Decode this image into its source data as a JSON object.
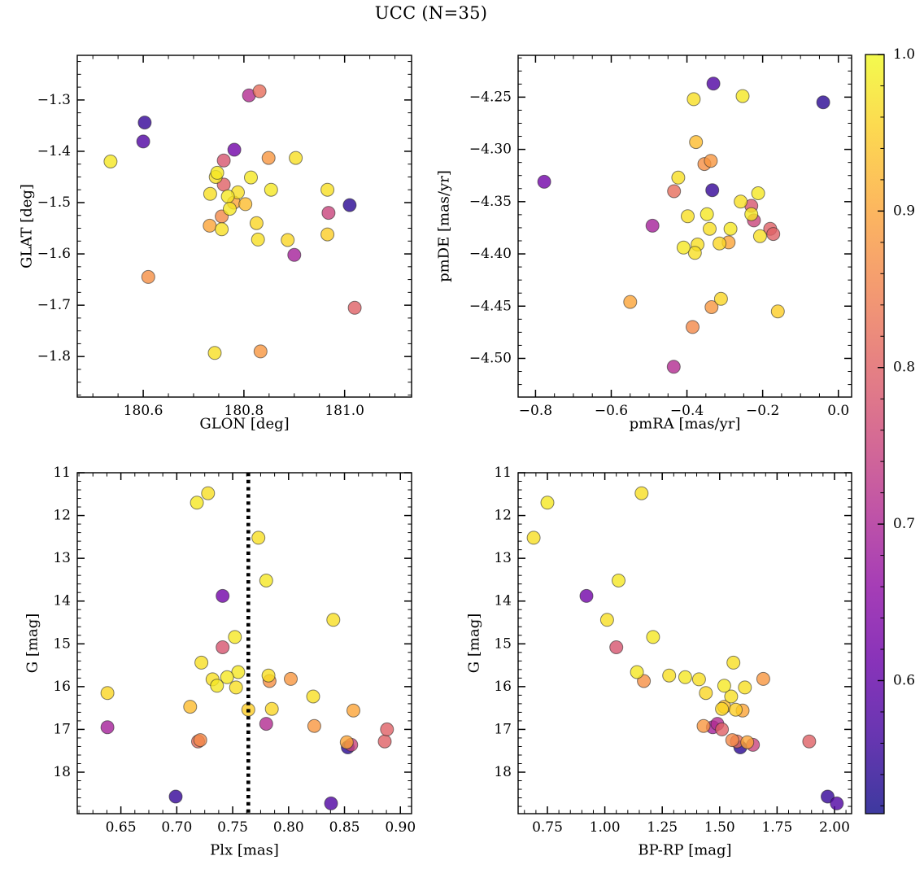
{
  "chart_data": {
    "type": "scatter",
    "title": "UCC (N=35)",
    "n_members": 35,
    "colormap": "plasma",
    "marker_alpha": 0.8,
    "marker_radius": 8,
    "colorbar": {
      "vmin": 0.515,
      "vmax": 1.0,
      "tick_values": [
        1.0,
        0.9,
        0.8,
        0.7,
        0.6
      ],
      "tick_labels": [
        "1.0",
        "0.9",
        "0.8",
        "0.7",
        "0.6"
      ],
      "minor_step": 0.02,
      "position": "right"
    },
    "panels": [
      {
        "id": "glon-glat",
        "xlabel": "GLON [deg]",
        "ylabel": "GLAT [deg]",
        "x_field": "glon",
        "y_field": "glat",
        "xlim": [
          180.469,
          181.133
        ],
        "ylim": [
          -1.879,
          -1.213
        ],
        "xtick_values": [
          180.6,
          180.8,
          181.0
        ],
        "xtick_labels": [
          "180.6",
          "180.8",
          "181.0"
        ],
        "ytick_values": [
          -1.3,
          -1.4,
          -1.5,
          -1.6,
          -1.7,
          -1.8
        ],
        "ytick_labels": [
          "−1.3",
          "−1.4",
          "−1.5",
          "−1.6",
          "−1.7",
          "−1.8"
        ],
        "x_minor_step": 0.05,
        "y_minor_step": 0.025
      },
      {
        "id": "pmra-pmde",
        "xlabel": "pmRA [mas/yr]",
        "ylabel": "pmDE [mas/yr]",
        "x_field": "pmra",
        "y_field": "pmde",
        "xlim": [
          -0.846,
          0.035
        ],
        "ylim": [
          -4.537,
          -4.21
        ],
        "xtick_values": [
          -0.8,
          -0.6,
          -0.4,
          -0.2,
          0.0
        ],
        "xtick_labels": [
          "−0.8",
          "−0.6",
          "−0.4",
          "−0.2",
          "0.0"
        ],
        "ytick_values": [
          -4.25,
          -4.3,
          -4.35,
          -4.4,
          -4.45,
          -4.5
        ],
        "ytick_labels": [
          "−4.25",
          "−4.30",
          "−4.35",
          "−4.40",
          "−4.45",
          "−4.50"
        ],
        "x_minor_step": 0.05,
        "y_minor_step": 0.0125
      },
      {
        "id": "plx-g",
        "xlabel": "Plx [mas]",
        "ylabel": "G [mag]",
        "x_field": "plx",
        "y_field": "g",
        "xlim": [
          0.611,
          0.91
        ],
        "ylim": [
          18.97,
          11.0
        ],
        "xtick_values": [
          0.65,
          0.7,
          0.75,
          0.8,
          0.85,
          0.9
        ],
        "xtick_labels": [
          "0.65",
          "0.70",
          "0.75",
          "0.80",
          "0.85",
          "0.90"
        ],
        "ytick_values": [
          11,
          12,
          13,
          14,
          15,
          16,
          17,
          18
        ],
        "ytick_labels": [
          "11",
          "12",
          "13",
          "14",
          "15",
          "16",
          "17",
          "18"
        ],
        "x_minor_step": 0.0125,
        "y_minor_step": 0.2,
        "vline": {
          "x": 0.764,
          "color": "#000000",
          "style": "dotted",
          "width": 4.6
        }
      },
      {
        "id": "bprp-g",
        "xlabel": "BP-RP [mag]",
        "ylabel": "G [mag]",
        "x_field": "bprp",
        "y_field": "g",
        "xlim": [
          0.6225,
          2.0745
        ],
        "ylim": [
          18.97,
          11.0
        ],
        "xtick_values": [
          0.75,
          1.0,
          1.25,
          1.5,
          1.75,
          2.0
        ],
        "xtick_labels": [
          "0.75",
          "1.00",
          "1.25",
          "1.50",
          "1.75",
          "2.00"
        ],
        "ytick_values": [
          11,
          12,
          13,
          14,
          15,
          16,
          17,
          18
        ],
        "ytick_labels": [
          "11",
          "12",
          "13",
          "14",
          "15",
          "16",
          "17",
          "18"
        ],
        "x_minor_step": 0.05,
        "y_minor_step": 0.2
      }
    ],
    "stars": [
      {
        "glon": 181.01,
        "glat": -1.505,
        "pmra": -0.04,
        "pmde": -4.255,
        "plx": 0.853,
        "g": 17.42,
        "bprp": 1.59,
        "prob": 0.54
      },
      {
        "glon": 180.603,
        "glat": -1.344,
        "pmra": -0.333,
        "pmde": -4.339,
        "plx": 0.699,
        "g": 18.57,
        "bprp": 1.97,
        "prob": 0.55
      },
      {
        "glon": 180.6,
        "glat": -1.381,
        "pmra": -0.33,
        "pmde": -4.237,
        "plx": 0.838,
        "g": 18.73,
        "bprp": 2.01,
        "prob": 0.58
      },
      {
        "glon": 180.781,
        "glat": -1.397,
        "pmra": -0.777,
        "pmde": -4.331,
        "plx": 0.741,
        "g": 13.88,
        "bprp": 0.92,
        "prob": 0.62
      },
      {
        "glon": 180.9,
        "glat": -1.602,
        "pmra": -0.491,
        "pmde": -4.373,
        "plx": 0.638,
        "g": 16.95,
        "bprp": 1.47,
        "prob": 0.69
      },
      {
        "glon": 180.81,
        "glat": -1.291,
        "pmra": -0.435,
        "pmde": -4.508,
        "plx": 0.78,
        "g": 16.87,
        "bprp": 1.49,
        "prob": 0.71
      },
      {
        "glon": 180.76,
        "glat": -1.418,
        "pmra": -0.23,
        "pmde": -4.354,
        "plx": 0.741,
        "g": 15.08,
        "bprp": 1.05,
        "prob": 0.78
      },
      {
        "glon": 180.968,
        "glat": -1.52,
        "pmra": -0.223,
        "pmde": -4.368,
        "plx": 0.856,
        "g": 17.36,
        "bprp": 1.645,
        "prob": 0.75
      },
      {
        "glon": 181.02,
        "glat": -1.705,
        "pmra": -0.18,
        "pmde": -4.376,
        "plx": 0.886,
        "g": 17.28,
        "bprp": 1.89,
        "prob": 0.8
      },
      {
        "glon": 180.76,
        "glat": -1.465,
        "pmra": -0.172,
        "pmde": -4.381,
        "plx": 0.888,
        "g": 17.0,
        "bprp": 1.51,
        "prob": 0.8
      },
      {
        "glon": 180.831,
        "glat": -1.283,
        "pmra": -0.434,
        "pmde": -4.34,
        "plx": 0.719,
        "g": 17.28,
        "bprp": 1.575,
        "prob": 0.82
      },
      {
        "glon": 180.849,
        "glat": -1.413,
        "pmra": -0.337,
        "pmde": -4.311,
        "plx": 0.802,
        "g": 15.82,
        "bprp": 1.69,
        "prob": 0.88
      },
      {
        "glon": 180.61,
        "glat": -1.645,
        "pmra": -0.354,
        "pmde": -4.314,
        "plx": 0.783,
        "g": 15.87,
        "bprp": 1.17,
        "prob": 0.87
      },
      {
        "glon": 180.833,
        "glat": -1.79,
        "pmra": -0.335,
        "pmde": -4.451,
        "plx": 0.823,
        "g": 16.92,
        "bprp": 1.43,
        "prob": 0.88
      },
      {
        "glon": 180.756,
        "glat": -1.527,
        "pmra": -0.385,
        "pmde": -4.47,
        "plx": 0.721,
        "g": 17.25,
        "bprp": 1.555,
        "prob": 0.86
      },
      {
        "glon": 180.732,
        "glat": -1.545,
        "pmra": -0.55,
        "pmde": -4.446,
        "plx": 0.852,
        "g": 17.3,
        "bprp": 1.62,
        "prob": 0.9
      },
      {
        "glon": 180.803,
        "glat": -1.503,
        "pmra": -0.376,
        "pmde": -4.293,
        "plx": 0.712,
        "g": 16.47,
        "bprp": 1.52,
        "prob": 0.93
      },
      {
        "glon": 180.742,
        "glat": -1.793,
        "pmra": -0.382,
        "pmde": -4.252,
        "plx": 0.728,
        "g": 11.48,
        "bprp": 1.16,
        "prob": 0.97
      },
      {
        "glon": 180.535,
        "glat": -1.42,
        "pmra": -0.253,
        "pmde": -4.249,
        "plx": 0.718,
        "g": 11.7,
        "bprp": 0.75,
        "prob": 0.98
      },
      {
        "glon": 180.903,
        "glat": -1.413,
        "pmra": -0.423,
        "pmde": -4.327,
        "plx": 0.773,
        "g": 12.52,
        "bprp": 0.69,
        "prob": 0.97
      },
      {
        "glon": 180.747,
        "glat": -1.442,
        "pmra": -0.212,
        "pmde": -4.342,
        "plx": 0.78,
        "g": 13.52,
        "bprp": 1.06,
        "prob": 0.98
      },
      {
        "glon": 180.744,
        "glat": -1.45,
        "pmra": -0.258,
        "pmde": -4.35,
        "plx": 0.84,
        "g": 14.44,
        "bprp": 1.01,
        "prob": 0.97
      },
      {
        "glon": 180.814,
        "glat": -1.451,
        "pmra": -0.23,
        "pmde": -4.362,
        "plx": 0.752,
        "g": 14.84,
        "bprp": 1.21,
        "prob": 0.98
      },
      {
        "glon": 180.733,
        "glat": -1.483,
        "pmra": -0.398,
        "pmde": -4.364,
        "plx": 0.722,
        "g": 15.44,
        "bprp": 1.56,
        "prob": 0.97
      },
      {
        "glon": 180.854,
        "glat": -1.475,
        "pmra": -0.347,
        "pmde": -4.362,
        "plx": 0.755,
        "g": 15.66,
        "bprp": 1.14,
        "prob": 0.98
      },
      {
        "glon": 180.966,
        "glat": -1.475,
        "pmra": -0.34,
        "pmde": -4.376,
        "plx": 0.782,
        "g": 15.74,
        "bprp": 1.28,
        "prob": 0.97
      },
      {
        "glon": 180.768,
        "glat": -1.488,
        "pmra": -0.285,
        "pmde": -4.376,
        "plx": 0.745,
        "g": 15.78,
        "bprp": 1.35,
        "prob": 0.98
      },
      {
        "glon": 180.788,
        "glat": -1.48,
        "pmra": -0.207,
        "pmde": -4.383,
        "plx": 0.732,
        "g": 15.83,
        "bprp": 1.41,
        "prob": 0.97
      },
      {
        "glon": 180.772,
        "glat": -1.512,
        "pmra": -0.409,
        "pmde": -4.394,
        "plx": 0.736,
        "g": 15.98,
        "bprp": 1.52,
        "prob": 0.98
      },
      {
        "glon": 180.756,
        "glat": -1.552,
        "pmra": -0.372,
        "pmde": -4.391,
        "plx": 0.753,
        "g": 16.02,
        "bprp": 1.61,
        "prob": 0.97
      },
      {
        "glon": 180.825,
        "glat": -1.54,
        "pmra": -0.314,
        "pmde": -4.39,
        "plx": 0.638,
        "g": 16.15,
        "bprp": 1.44,
        "prob": 0.96
      },
      {
        "glon": 180.828,
        "glat": -1.572,
        "pmra": -0.379,
        "pmde": -4.399,
        "plx": 0.822,
        "g": 16.23,
        "bprp": 1.55,
        "prob": 0.97
      },
      {
        "glon": 180.887,
        "glat": -1.573,
        "pmra": -0.31,
        "pmde": -4.443,
        "plx": 0.785,
        "g": 16.52,
        "bprp": 1.51,
        "prob": 0.96
      },
      {
        "glon": 180.966,
        "glat": -1.562,
        "pmra": -0.16,
        "pmde": -4.455,
        "plx": 0.764,
        "g": 16.54,
        "bprp": 1.57,
        "prob": 0.95
      },
      {
        "glon": 180.78,
        "glat": -1.5,
        "pmra": -0.29,
        "pmde": -4.389,
        "plx": 0.858,
        "g": 16.56,
        "bprp": 1.6,
        "prob": 0.9
      }
    ]
  }
}
